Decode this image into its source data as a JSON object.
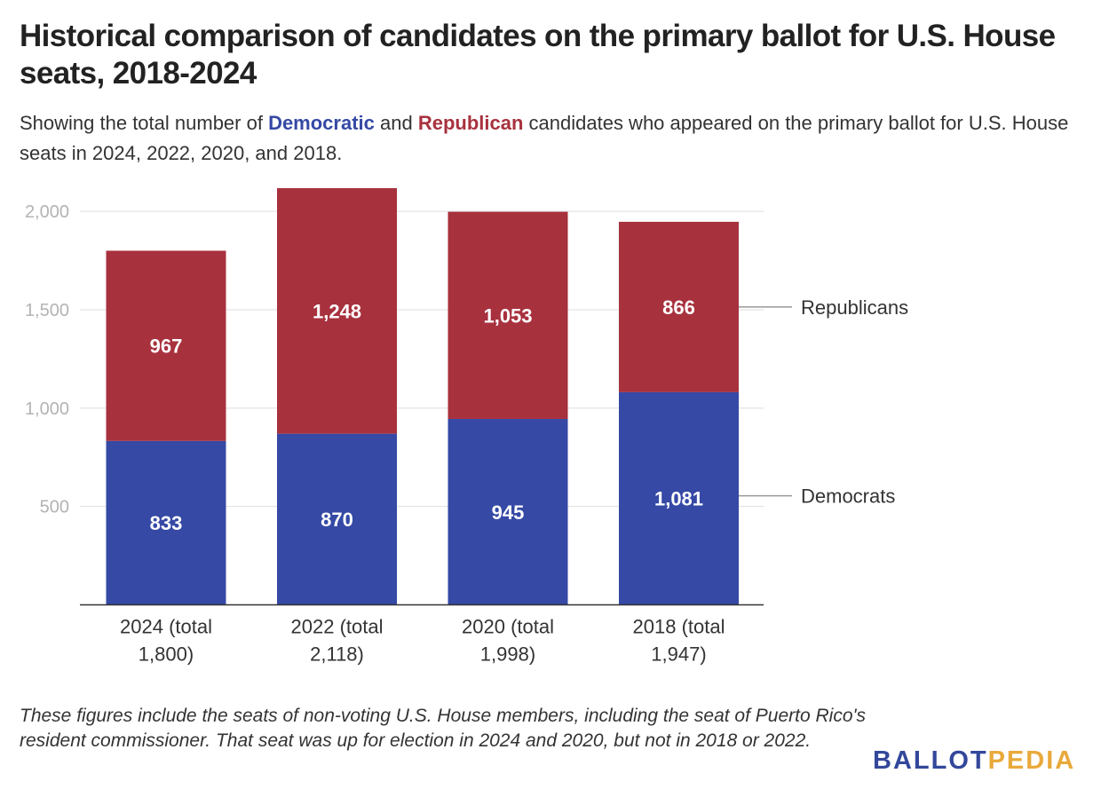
{
  "header": {
    "title": "Historical comparison of candidates on the primary ballot for U.S. House seats, 2018-2024",
    "subtitle_before": "Showing the total number of ",
    "subtitle_dem": "Democratic",
    "subtitle_mid": " and ",
    "subtitle_rep": "Republican",
    "subtitle_after": " candidates who appeared on the primary ballot for U.S. House seats in 2024, 2022, 2020, and 2018."
  },
  "footer": {
    "note": "These figures include the seats of non-voting U.S. House members, including the seat of Puerto Rico's resident commissioner. That seat was up for election in 2024 and 2020, but not in 2018 or 2022.",
    "logo_part1": "BALLOT",
    "logo_part2": "PEDIA"
  },
  "colors": {
    "democrats": "#3549a5",
    "republicans": "#a8313e",
    "logo_blue": "#33479b",
    "logo_gold": "#e9a93b"
  },
  "chart_data": {
    "type": "bar",
    "stacked": true,
    "categories": [
      [
        "2024 (total",
        "1,800)"
      ],
      [
        "2022 (total",
        "2,118)"
      ],
      [
        "2020 (total",
        "1,998)"
      ],
      [
        "2018 (total",
        "1,947)"
      ]
    ],
    "series": [
      {
        "name": "Democrats",
        "values": [
          833,
          870,
          945,
          1081
        ],
        "labels": [
          "833",
          "870",
          "945",
          "1,081"
        ],
        "color": "#3549a5"
      },
      {
        "name": "Republicans",
        "values": [
          967,
          1248,
          1053,
          866
        ],
        "labels": [
          "967",
          "1,248",
          "1,053",
          "866"
        ],
        "color": "#a8313e"
      }
    ],
    "yticks": [
      500,
      1000,
      1500,
      2000
    ],
    "ytick_labels": [
      "500",
      "1,000",
      "1,500",
      "2,000"
    ],
    "ylim": [
      0,
      2118
    ],
    "grid": true,
    "legend": "direct labels at right"
  }
}
